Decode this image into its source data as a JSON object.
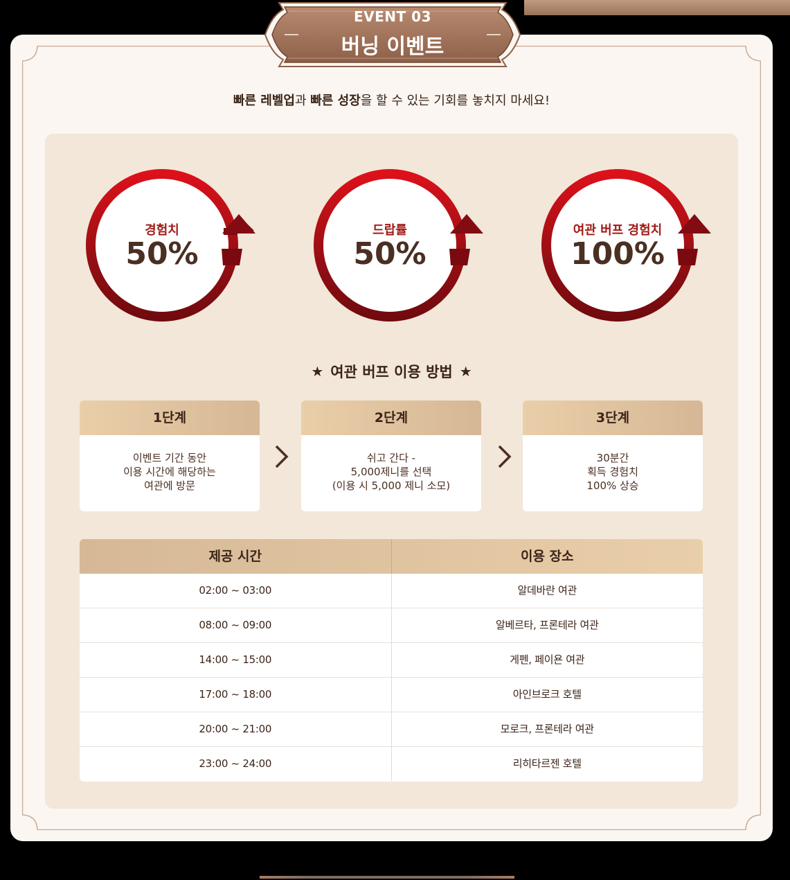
{
  "header": {
    "eyebrow": "EVENT 03",
    "title": "버닝 이벤트"
  },
  "subtitle": {
    "bold1": "빠른 레벨업",
    "text1": "과 ",
    "bold2": "빠른 성장",
    "text2": "을 할 수 있는 기회를 놓치지 마세요!"
  },
  "rings": [
    {
      "label": "경험치",
      "value": "50%"
    },
    {
      "label": "드랍률",
      "value": "50%"
    },
    {
      "label": "여관 버프 경험치",
      "value": "100%"
    }
  ],
  "howto": {
    "title": "여관 버프 이용 방법",
    "star_icon": "★"
  },
  "steps": [
    {
      "title": "1단계",
      "lines": [
        "이벤트 기간 동안",
        "이용 시간에 해당하는",
        "여관에 방문"
      ]
    },
    {
      "title": "2단계",
      "lines": [
        "쉬고 간다 -",
        "5,000제니를 선택",
        "(이용 시 5,000 제니 소모)"
      ]
    },
    {
      "title": "3단계",
      "lines": [
        "30분간",
        "획득 경험치",
        "100% 상승"
      ]
    }
  ],
  "schedule": {
    "headers": [
      "제공 시간",
      "이용 장소"
    ],
    "rows": [
      [
        "02:00 ~ 03:00",
        "알데바란 여관"
      ],
      [
        "08:00 ~ 09:00",
        "알베르타, 프론테라 여관"
      ],
      [
        "14:00 ~ 15:00",
        "게펜, 페이욘 여관"
      ],
      [
        "17:00 ~ 18:00",
        "아인브로크 호텔"
      ],
      [
        "20:00 ~ 21:00",
        "모로크, 프론테라 여관"
      ],
      [
        "23:00 ~ 24:00",
        "리히타르젠 호텔"
      ]
    ]
  },
  "colors": {
    "accent_red": "#e0111b",
    "dark_red": "#6e0a0e",
    "brown": "#8a5e47",
    "cream": "#fbf6f1"
  }
}
